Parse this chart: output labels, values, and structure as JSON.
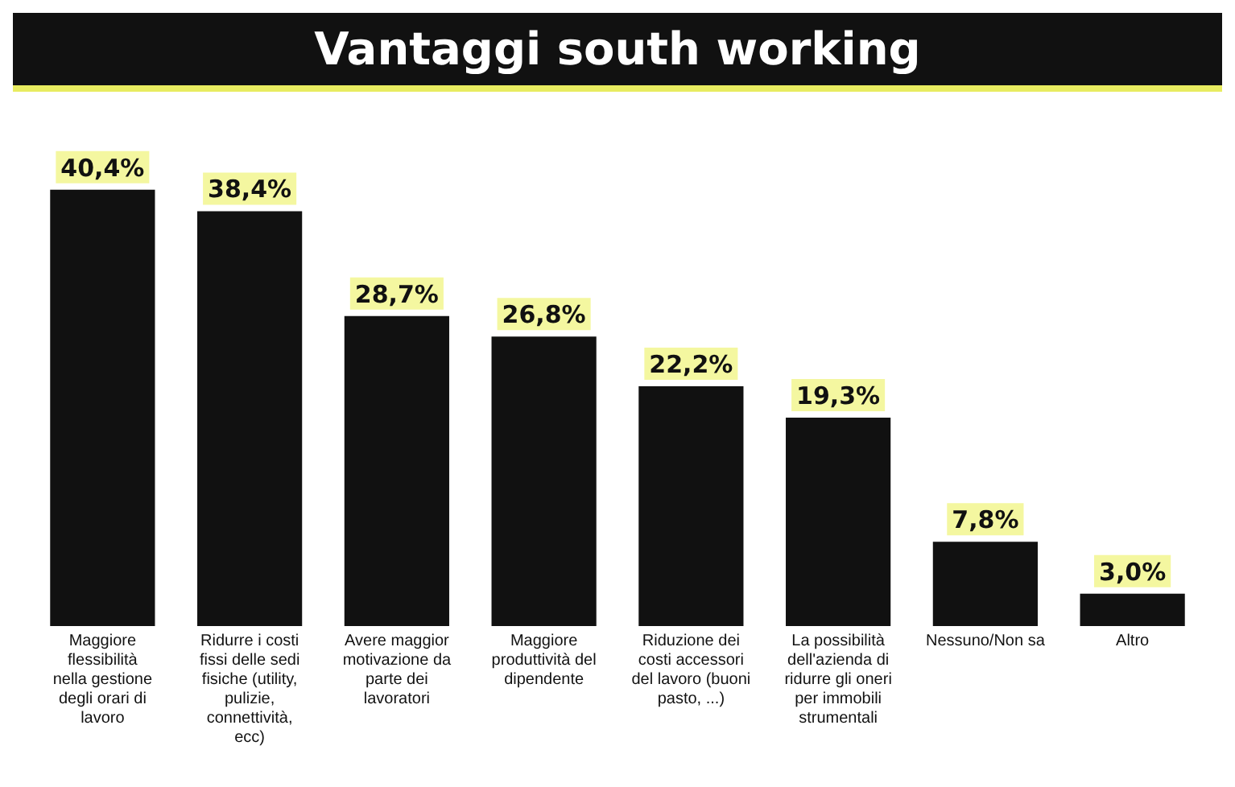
{
  "chart_data": {
    "type": "bar",
    "title": "Vantaggi south working",
    "categories": [
      "Maggiore flessibilità nella gestione degli orari di lavoro",
      "Ridurre i costi fissi delle sedi fisiche (utility, pulizie, connettività, ecc)",
      "Avere maggior motivazione da parte dei lavoratori",
      "Maggiore produttività del dipendente",
      "Riduzione dei costi accessori del lavoro (buoni pasto, ...)",
      "La possibilità dell'azienda di ridurre gli oneri per immobili strumentali",
      "Nessuno/Non sa",
      "Altro"
    ],
    "values": [
      40.4,
      38.4,
      28.7,
      26.8,
      22.2,
      19.3,
      7.8,
      3.0
    ],
    "value_labels": [
      "40,4%",
      "38,4%",
      "28,7%",
      "26,8%",
      "22,2%",
      "19,3%",
      "7,8%",
      "3,0%"
    ],
    "color": "#111111",
    "grid": false,
    "legend": false
  }
}
